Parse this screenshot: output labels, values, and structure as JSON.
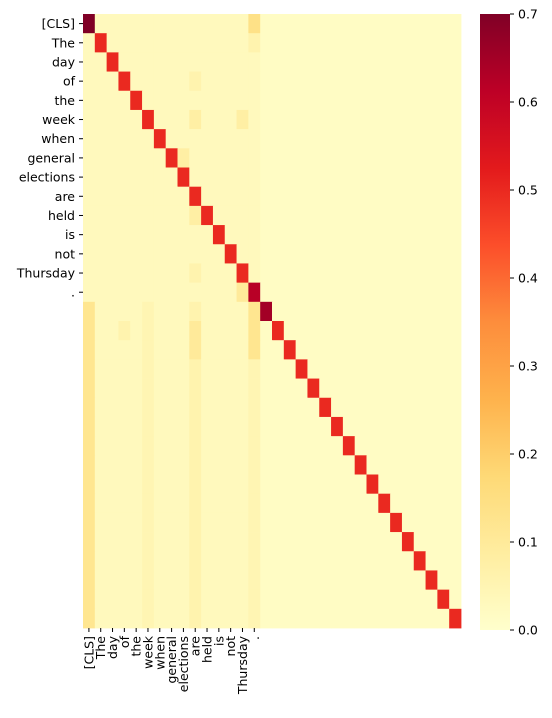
{
  "chart_data": {
    "type": "heatmap",
    "tokens": [
      "[CLS]",
      "The",
      "day",
      "of",
      "the",
      "week",
      "when",
      "general",
      "elections",
      "are",
      "held",
      "is",
      "not",
      "Thursday",
      "."
    ],
    "matrix_size": 32,
    "colorbar": {
      "min": 0.0,
      "max": 0.7,
      "ticks": [
        0.0,
        0.1,
        0.2,
        0.3,
        0.4,
        0.5,
        0.6,
        0.7
      ],
      "tick_labels": [
        "0.0",
        "0.1",
        "0.2",
        "0.3",
        "0.4",
        "0.5",
        "0.6",
        "0.7"
      ],
      "colormap": "YlOrRd"
    },
    "values": {
      "background": 0.015,
      "token_region_background": 0.03,
      "diagonal": 0.5,
      "diagonal_overrides": [
        {
          "row": 0,
          "value": 0.7
        },
        {
          "row": 14,
          "value": 0.62
        },
        {
          "row": 15,
          "value": 0.65
        }
      ],
      "column_overrides": [
        {
          "col": 0,
          "value": 0.12,
          "row_from": 15,
          "row_to": 31
        },
        {
          "col": 5,
          "value": 0.05,
          "row_from": 15,
          "row_to": 31
        },
        {
          "col": 9,
          "value": 0.06,
          "row_from": 15,
          "row_to": 31
        },
        {
          "col": 14,
          "value": 0.05,
          "row_from": 15,
          "row_to": 31
        }
      ],
      "cell_overrides": [
        {
          "row": 0,
          "col": 14,
          "value": 0.14
        },
        {
          "row": 1,
          "col": 14,
          "value": 0.06
        },
        {
          "row": 3,
          "col": 9,
          "value": 0.06
        },
        {
          "row": 5,
          "col": 9,
          "value": 0.08
        },
        {
          "row": 5,
          "col": 13,
          "value": 0.08
        },
        {
          "row": 7,
          "col": 8,
          "value": 0.08
        },
        {
          "row": 10,
          "col": 9,
          "value": 0.08
        },
        {
          "row": 13,
          "col": 9,
          "value": 0.06
        },
        {
          "row": 14,
          "col": 13,
          "value": 0.1
        },
        {
          "row": 15,
          "col": 14,
          "value": 0.12
        },
        {
          "row": 16,
          "col": 3,
          "value": 0.06
        },
        {
          "row": 16,
          "col": 9,
          "value": 0.1
        },
        {
          "row": 16,
          "col": 14,
          "value": 0.12
        },
        {
          "row": 17,
          "col": 9,
          "value": 0.1
        },
        {
          "row": 17,
          "col": 14,
          "value": 0.12
        }
      ]
    }
  }
}
